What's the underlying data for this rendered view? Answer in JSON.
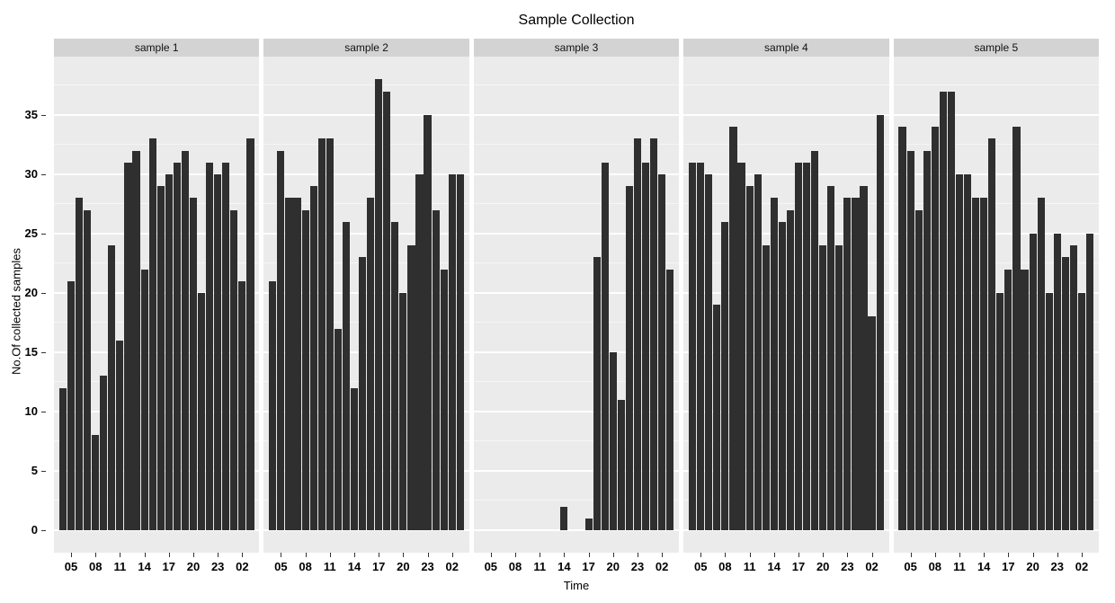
{
  "title": "Sample Collection",
  "x_axis": {
    "label": "Time",
    "tick_labels": [
      "05",
      "08",
      "11",
      "14",
      "17",
      "20",
      "23",
      "02"
    ]
  },
  "y_axis": {
    "label": "No.Of collected samples",
    "ticks": [
      0,
      5,
      10,
      15,
      20,
      25,
      30,
      35
    ]
  },
  "chart_data": {
    "type": "bar",
    "title": "Sample Collection",
    "xlabel": "Time",
    "ylabel": "No.Of collected samples",
    "ylim": [
      0,
      38
    ],
    "grid": "on",
    "legend": "none",
    "x_hours": [
      "04",
      "05",
      "06",
      "07",
      "08",
      "09",
      "10",
      "11",
      "12",
      "13",
      "14",
      "15",
      "16",
      "17",
      "18",
      "19",
      "20",
      "21",
      "22",
      "23",
      "00",
      "01",
      "02",
      "03"
    ],
    "x_tick_hours": [
      "05",
      "08",
      "11",
      "14",
      "17",
      "20",
      "23",
      "02"
    ],
    "x_tick_indices": [
      1,
      4,
      7,
      10,
      13,
      16,
      19,
      22
    ],
    "facets": [
      {
        "label": "sample 1",
        "values": [
          12,
          21,
          28,
          27,
          8,
          13,
          24,
          16,
          31,
          32,
          22,
          33,
          29,
          30,
          31,
          32,
          28,
          20,
          31,
          30,
          31,
          27,
          21,
          33
        ]
      },
      {
        "label": "sample 2",
        "values": [
          21,
          32,
          28,
          28,
          27,
          29,
          33,
          33,
          17,
          26,
          12,
          23,
          28,
          38,
          37,
          26,
          20,
          24,
          30,
          35,
          27,
          22,
          30,
          30
        ]
      },
      {
        "label": "sample 3",
        "values": [
          0,
          0,
          0,
          0,
          0,
          0,
          0,
          0,
          0,
          0,
          2,
          0,
          0,
          1,
          23,
          31,
          15,
          11,
          29,
          33,
          31,
          33,
          30,
          22
        ]
      },
      {
        "label": "sample 4",
        "values": [
          31,
          31,
          30,
          19,
          26,
          34,
          31,
          29,
          30,
          24,
          28,
          26,
          27,
          31,
          31,
          32,
          24,
          29,
          24,
          28,
          28,
          29,
          18,
          35
        ]
      },
      {
        "label": "sample 5",
        "values": [
          34,
          32,
          27,
          32,
          34,
          37,
          37,
          30,
          30,
          28,
          28,
          33,
          20,
          22,
          34,
          22,
          25,
          28,
          20,
          25,
          23,
          24,
          20,
          25
        ]
      }
    ],
    "colors": {
      "bar": "#2f2f2f",
      "panel_background": "#ebebeb",
      "strip_background": "#d3d3d3",
      "gridline": "#ffffff",
      "axis_text": "#000000",
      "outer_background": "#ffffff"
    }
  }
}
